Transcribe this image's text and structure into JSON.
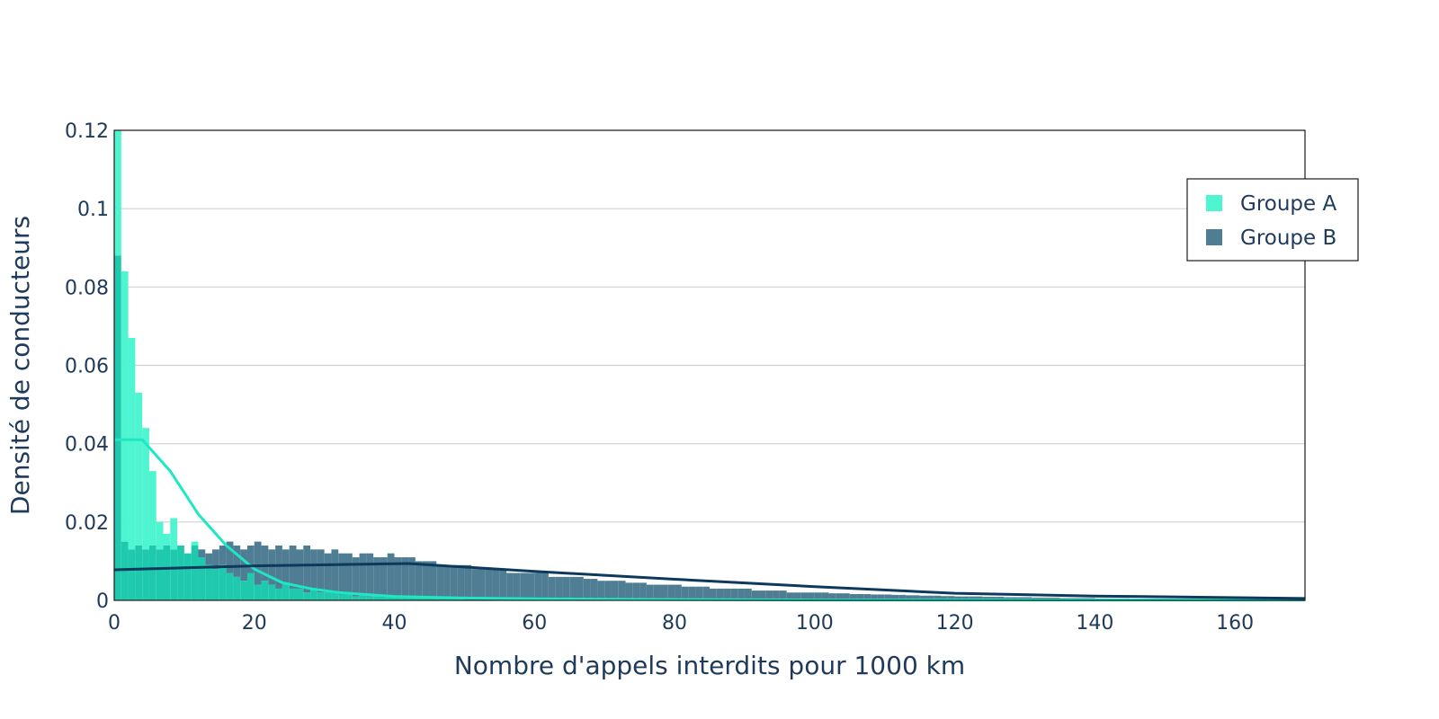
{
  "chart_data": {
    "type": "bar",
    "subtype": "overlaid histogram with density curves",
    "xlabel": "Nombre d'appels interdits pour 1000 km",
    "ylabel": "Densité de conducteurs",
    "xlim": [
      0,
      170
    ],
    "ylim": [
      0,
      0.12
    ],
    "x_ticks": [
      "0",
      "20",
      "40",
      "60",
      "80",
      "100",
      "120",
      "140",
      "160"
    ],
    "y_ticks": [
      "0",
      "0.02",
      "0.04",
      "0.06",
      "0.08",
      "0.1",
      "0.12"
    ],
    "grid": "horizontal",
    "legend_position": "top-right",
    "bin_width": 1,
    "colors": {
      "group_a_bar": "#4ef5d0",
      "group_b_bar": "#4f7e94",
      "overlap": "#1ec9ad",
      "group_a_line": "#1de8c3",
      "group_b_line": "#0d3a5c",
      "text": "#1f3a5a",
      "grid": "#d0d0d0"
    },
    "series": [
      {
        "name": "Groupe A",
        "bar_values": [
          0.12,
          0.084,
          0.067,
          0.053,
          0.044,
          0.033,
          0.02,
          0.017,
          0.021,
          0.014,
          0.012,
          0.015,
          0.011,
          0.009,
          0.008,
          0.009,
          0.007,
          0.006,
          0.005,
          0.007,
          0.004,
          0.005,
          0.004,
          0.003,
          0.004,
          0.003,
          0.003,
          0.002,
          0.003,
          0.002,
          0.002,
          0.002,
          0.0015,
          0.0015,
          0.001,
          0.0012,
          0.001,
          0.001,
          0.0008,
          0.0008,
          0.0008,
          0.0006,
          0.0006,
          0.0005,
          0.0005,
          0.0005,
          0.0004,
          0.0004,
          0.0004,
          0.0003
        ],
        "line_x": [
          0,
          4,
          8,
          12,
          16,
          20,
          24,
          28,
          32,
          36,
          40,
          50,
          60,
          80,
          100,
          120,
          140,
          170
        ],
        "line_y": [
          0.041,
          0.041,
          0.033,
          0.022,
          0.014,
          0.008,
          0.0045,
          0.003,
          0.002,
          0.0015,
          0.001,
          0.0006,
          0.0004,
          0.0002,
          0.0001,
          0.0001,
          0.0001,
          0.0001
        ]
      },
      {
        "name": "Groupe B",
        "bar_values": [
          0.088,
          0.015,
          0.013,
          0.014,
          0.013,
          0.014,
          0.013,
          0.014,
          0.013,
          0.014,
          0.012,
          0.014,
          0.013,
          0.012,
          0.013,
          0.014,
          0.015,
          0.014,
          0.013,
          0.014,
          0.015,
          0.014,
          0.013,
          0.014,
          0.013,
          0.014,
          0.013,
          0.014,
          0.013,
          0.013,
          0.012,
          0.013,
          0.012,
          0.012,
          0.011,
          0.012,
          0.012,
          0.011,
          0.011,
          0.012,
          0.011,
          0.011,
          0.011,
          0.01,
          0.01,
          0.01,
          0.009,
          0.009,
          0.009,
          0.009,
          0.009,
          0.008,
          0.008,
          0.008,
          0.008,
          0.008,
          0.007,
          0.007,
          0.007,
          0.007,
          0.007,
          0.007,
          0.006,
          0.006,
          0.006,
          0.006,
          0.006,
          0.0055,
          0.0055,
          0.005,
          0.005,
          0.005,
          0.005,
          0.0045,
          0.0045,
          0.0045,
          0.004,
          0.004,
          0.004,
          0.004,
          0.004,
          0.0035,
          0.0035,
          0.0035,
          0.0035,
          0.003,
          0.003,
          0.003,
          0.003,
          0.003,
          0.003,
          0.0025,
          0.0025,
          0.0025,
          0.0025,
          0.0025,
          0.002,
          0.002,
          0.002,
          0.002,
          0.002,
          0.002,
          0.0018,
          0.0018,
          0.0018,
          0.0016,
          0.0016,
          0.0016,
          0.0015,
          0.0015,
          0.0015,
          0.0014,
          0.0014,
          0.0013,
          0.0013,
          0.0012,
          0.0012,
          0.0012,
          0.0011,
          0.0011,
          0.001,
          0.001,
          0.001,
          0.001,
          0.0009,
          0.0009,
          0.0009,
          0.0008,
          0.0008,
          0.0008,
          0.0008,
          0.0007,
          0.0007,
          0.0007,
          0.0007,
          0.0006,
          0.0006,
          0.0006,
          0.0006,
          0.0006,
          0.0005,
          0.0005,
          0.0005,
          0.0005,
          0.0005,
          0.0004,
          0.0004,
          0.0004,
          0.0004,
          0.0004,
          0.0004,
          0.0003,
          0.0003,
          0.0003,
          0.0003,
          0.0003,
          0.0003,
          0.0003,
          0.0002,
          0.0002,
          0.0002,
          0.0002,
          0.0002,
          0.0002,
          0.0002,
          0.0002
        ],
        "line_x": [
          0,
          20,
          42,
          60,
          80,
          100,
          120,
          140,
          170
        ],
        "line_y": [
          0.0078,
          0.0088,
          0.0094,
          0.0074,
          0.0054,
          0.0035,
          0.0018,
          0.0011,
          0.0005
        ]
      }
    ]
  }
}
